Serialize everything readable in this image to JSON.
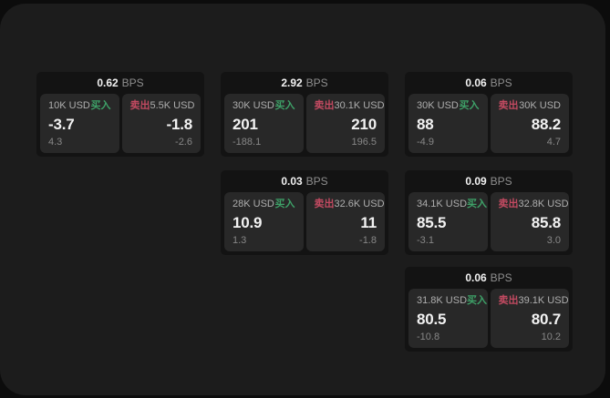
{
  "colors": {
    "page_bg": "#0c0c0c",
    "panel_bg": "#1c1c1c",
    "card_bg": "#131313",
    "tile_bg": "#282828",
    "buy_green": "#3ea168",
    "sell_red": "#c24a61",
    "text_primary": "#f2f2f2",
    "text_label": "#aeaeae",
    "text_muted": "#8f8f8f",
    "text_dim": "#878787"
  },
  "labels": {
    "bps_unit": "BPS",
    "buy": "买入",
    "sell": "卖出"
  },
  "cards": [
    {
      "bps": "0.62",
      "grid": {
        "col": 0,
        "row": 0
      },
      "buy": {
        "amount": "10K USD",
        "value": "-3.7",
        "delta": "4.3"
      },
      "sell": {
        "amount": "5.5K USD",
        "value": "-1.8",
        "delta": "-2.6"
      }
    },
    {
      "bps": "2.92",
      "grid": {
        "col": 1,
        "row": 0
      },
      "buy": {
        "amount": "30K USD",
        "value": "201",
        "delta": "-188.1"
      },
      "sell": {
        "amount": "30.1K USD",
        "value": "210",
        "delta": "196.5"
      }
    },
    {
      "bps": "0.06",
      "grid": {
        "col": 2,
        "row": 0
      },
      "buy": {
        "amount": "30K USD",
        "value": "88",
        "delta": "-4.9"
      },
      "sell": {
        "amount": "30K USD",
        "value": "88.2",
        "delta": "4.7"
      }
    },
    {
      "bps": "0.03",
      "grid": {
        "col": 1,
        "row": 1
      },
      "buy": {
        "amount": "28K USD",
        "value": "10.9",
        "delta": "1.3"
      },
      "sell": {
        "amount": "32.6K USD",
        "value": "11",
        "delta": "-1.8"
      }
    },
    {
      "bps": "0.09",
      "grid": {
        "col": 2,
        "row": 1
      },
      "buy": {
        "amount": "34.1K USD",
        "value": "85.5",
        "delta": "-3.1"
      },
      "sell": {
        "amount": "32.8K USD",
        "value": "85.8",
        "delta": "3.0"
      }
    },
    {
      "bps": "0.06",
      "grid": {
        "col": 2,
        "row": 2
      },
      "buy": {
        "amount": "31.8K USD",
        "value": "80.5",
        "delta": "-10.8"
      },
      "sell": {
        "amount": "39.1K USD",
        "value": "80.7",
        "delta": "10.2"
      }
    }
  ]
}
